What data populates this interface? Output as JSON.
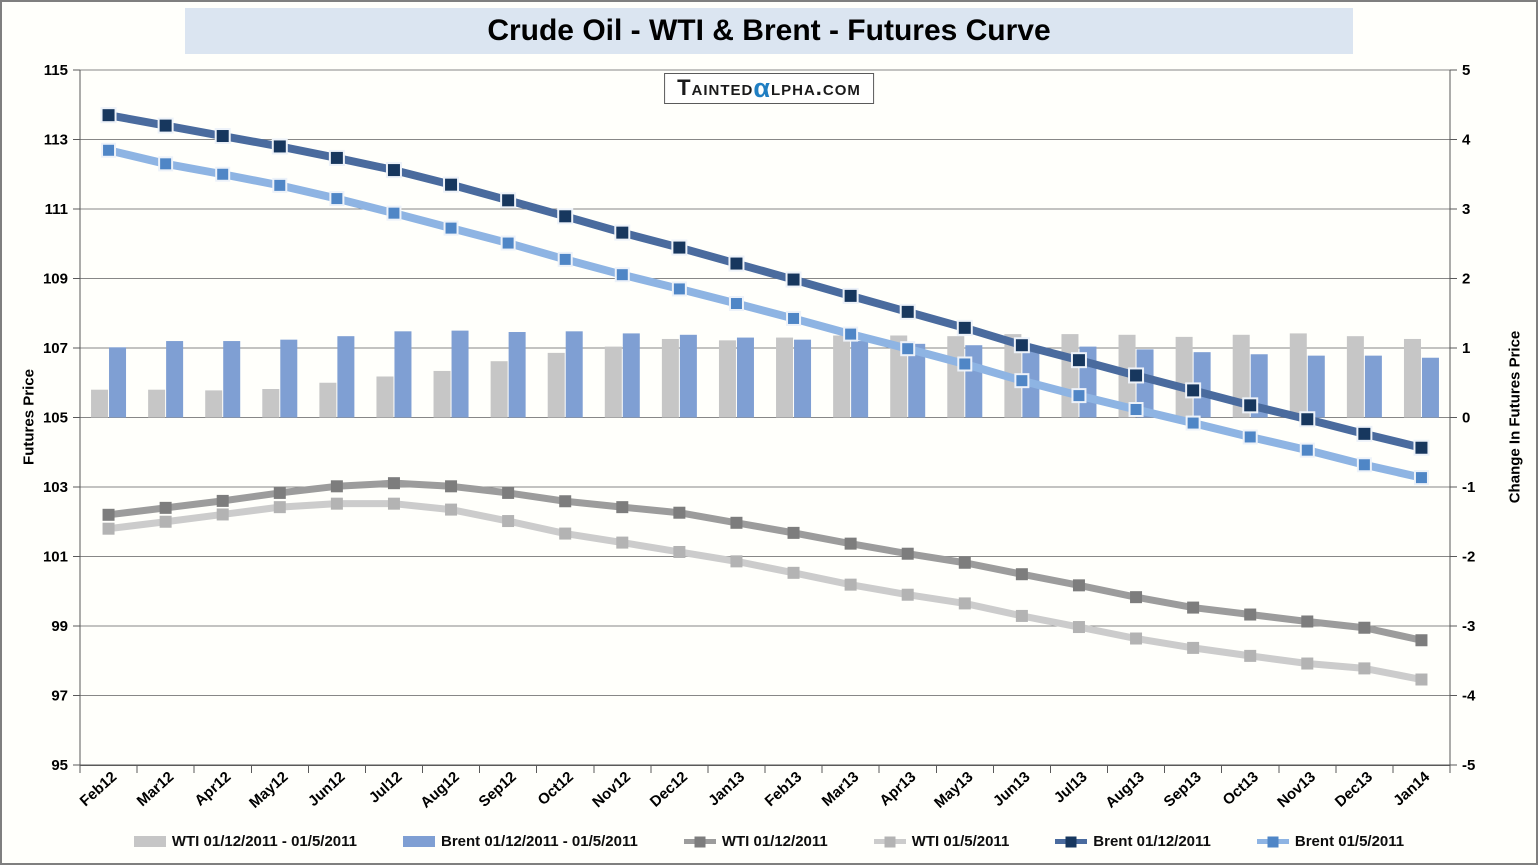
{
  "title": "Crude Oil - WTI & Brent - Futures Curve",
  "logo": {
    "part1": "Tainted",
    "alpha": "α",
    "part2": "lpha.com"
  },
  "chart_data": {
    "type": "combo-bar-line",
    "title": "Crude Oil - WTI & Brent - Futures Curve",
    "categories": [
      "Feb12",
      "Mar12",
      "Apr12",
      "May12",
      "Jun12",
      "Jul12",
      "Aug12",
      "Sep12",
      "Oct12",
      "Nov12",
      "Dec12",
      "Jan13",
      "Feb13",
      "Mar13",
      "Apr13",
      "May13",
      "Jun13",
      "Jul13",
      "Aug13",
      "Sep13",
      "Oct13",
      "Nov13",
      "Dec13",
      "Jan14"
    ],
    "y_left": {
      "title": "Futures Price",
      "min": 95,
      "max": 115,
      "tick_step": 2,
      "ticks": [
        115,
        113,
        111,
        109,
        107,
        105,
        103,
        101,
        99,
        97,
        95
      ]
    },
    "y_right": {
      "title": "Change In Futures Price",
      "min": -5,
      "max": 5,
      "tick_step": 1,
      "ticks": [
        5,
        4,
        3,
        2,
        1,
        0,
        -1,
        -2,
        -3,
        -4,
        -5
      ]
    },
    "grid": true,
    "legend_position": "bottom",
    "bar_series": [
      {
        "name": "WTI 01/12/2011 - 01/5/2011",
        "axis": "right",
        "color": "#c6c6c6",
        "values": [
          0.4,
          0.4,
          0.39,
          0.41,
          0.5,
          0.59,
          0.67,
          0.81,
          0.93,
          1.02,
          1.13,
          1.11,
          1.15,
          1.18,
          1.18,
          1.17,
          1.2,
          1.2,
          1.19,
          1.16,
          1.19,
          1.21,
          1.17,
          1.13
        ]
      },
      {
        "name": "Brent 01/12/2011 - 01/5/2011",
        "axis": "right",
        "color": "#7f9fd3",
        "values": [
          1.01,
          1.1,
          1.1,
          1.12,
          1.17,
          1.24,
          1.25,
          1.23,
          1.24,
          1.21,
          1.19,
          1.15,
          1.12,
          1.1,
          1.06,
          1.04,
          1.02,
          1.02,
          0.98,
          0.94,
          0.91,
          0.89,
          0.89,
          0.86
        ]
      }
    ],
    "line_series": [
      {
        "name": "WTI 01/12/2011",
        "axis": "left",
        "line_color": "#9c9c9c",
        "marker_color": "#7d7d7d",
        "marker_stroke": "none",
        "line_width": 7,
        "marker_size": 12,
        "values": [
          102.2,
          102.4,
          102.6,
          102.83,
          103.02,
          103.11,
          103.02,
          102.83,
          102.59,
          102.42,
          102.26,
          101.97,
          101.68,
          101.37,
          101.08,
          100.82,
          100.49,
          100.17,
          99.83,
          99.53,
          99.33,
          99.13,
          98.95,
          98.59
        ]
      },
      {
        "name": "WTI 01/5/2011",
        "axis": "left",
        "line_color": "#cccccc",
        "marker_color": "#b3b3b3",
        "marker_stroke": "none",
        "line_width": 7,
        "marker_size": 12,
        "values": [
          101.8,
          102.0,
          102.21,
          102.42,
          102.52,
          102.52,
          102.35,
          102.02,
          101.66,
          101.4,
          101.13,
          100.86,
          100.53,
          100.19,
          99.9,
          99.65,
          99.29,
          98.97,
          98.64,
          98.37,
          98.14,
          97.92,
          97.78,
          97.46
        ]
      },
      {
        "name": "Brent 01/12/2011",
        "axis": "left",
        "line_color": "#4a6b9e",
        "marker_color": "#17375e",
        "marker_stroke": "#edf2f9",
        "line_width": 8,
        "marker_size": 14,
        "values": [
          113.7,
          113.4,
          113.1,
          112.8,
          112.47,
          112.12,
          111.7,
          111.25,
          110.79,
          110.32,
          109.89,
          109.43,
          108.97,
          108.5,
          108.04,
          107.58,
          107.08,
          106.65,
          106.21,
          105.78,
          105.35,
          104.95,
          104.53,
          104.13
        ]
      },
      {
        "name": "Brent 01/5/2011",
        "axis": "left",
        "line_color": "#8eb4e3",
        "marker_color": "#4f86c6",
        "marker_stroke": "#edf2f9",
        "line_width": 8,
        "marker_size": 13,
        "values": [
          112.69,
          112.3,
          112.0,
          111.68,
          111.3,
          110.88,
          110.45,
          110.02,
          109.55,
          109.11,
          108.7,
          108.28,
          107.85,
          107.4,
          106.98,
          106.54,
          106.06,
          105.63,
          105.23,
          104.84,
          104.44,
          104.06,
          103.64,
          103.27
        ]
      }
    ]
  },
  "legend": {
    "items": [
      {
        "label": "WTI 01/12/2011 - 01/5/2011",
        "swatch": "bar",
        "color": "#c6c6c6"
      },
      {
        "label": "Brent 01/12/2011 - 01/5/2011",
        "swatch": "bar",
        "color": "#7f9fd3"
      },
      {
        "label": "WTI 01/12/2011",
        "swatch": "line",
        "color": "#9c9c9c",
        "marker": "#7d7d7d"
      },
      {
        "label": "WTI 01/5/2011",
        "swatch": "line",
        "color": "#cccccc",
        "marker": "#b3b3b3"
      },
      {
        "label": "Brent 01/12/2011",
        "swatch": "line",
        "color": "#4a6b9e",
        "marker": "#17375e"
      },
      {
        "label": "Brent 01/5/2011",
        "swatch": "line",
        "color": "#8eb4e3",
        "marker": "#4f86c6"
      }
    ]
  },
  "colors": {
    "title_background": "#dbe5f1",
    "gridline": "#878787",
    "axis_line": "#595959",
    "logo_alpha": "#1f7ec2"
  }
}
